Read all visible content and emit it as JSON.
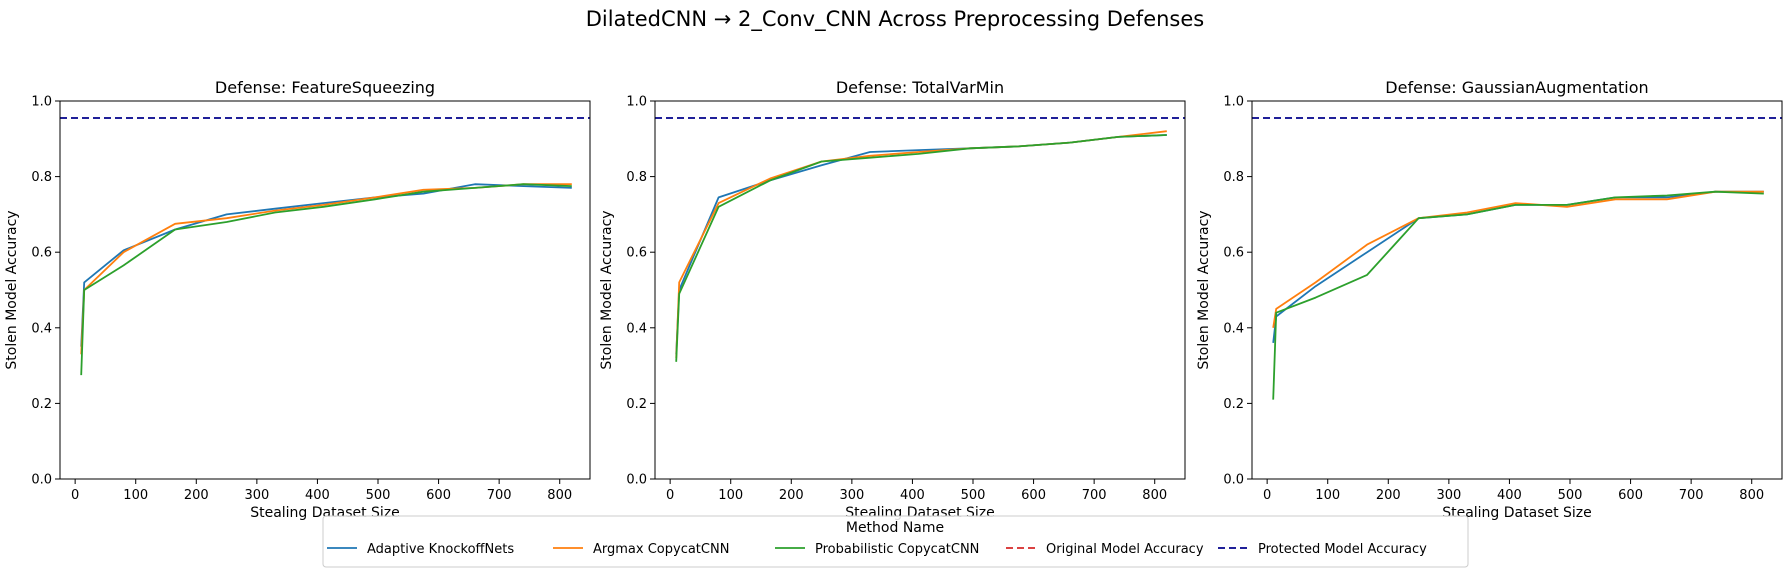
{
  "figure": {
    "suptitle": "DilatedCNN → 2_Conv_CNN Across Preprocessing Defenses"
  },
  "legend": {
    "title": "Method Name",
    "items": [
      {
        "label": "Adaptive KnockoffNets",
        "color": "#1f77b4",
        "dash": "solid"
      },
      {
        "label": "Argmax CopycatCNN",
        "color": "#ff7f0e",
        "dash": "solid"
      },
      {
        "label": "Probabilistic CopycatCNN",
        "color": "#2ca02c",
        "dash": "solid"
      },
      {
        "label": "Original Model Accuracy",
        "color": "#d62728",
        "dash": "dashed"
      },
      {
        "label": "Protected Model Accuracy",
        "color": "#00008b",
        "dash": "dashed"
      }
    ]
  },
  "chart_data": [
    {
      "type": "line",
      "title": "Defense: FeatureSqueezing",
      "xlabel": "Stealing Dataset Size",
      "ylabel": "Stolen Model Accuracy",
      "xlim": [
        -25,
        850
      ],
      "ylim": [
        0.0,
        1.0
      ],
      "xticks": [
        0,
        100,
        200,
        300,
        400,
        500,
        600,
        700,
        800
      ],
      "yticks": [
        0.0,
        0.2,
        0.4,
        0.6,
        0.8,
        1.0
      ],
      "grid": false,
      "protected_accuracy": 0.955,
      "series": [
        {
          "name": "Adaptive KnockoffNets",
          "x": [
            10,
            15,
            80,
            165,
            250,
            330,
            410,
            495,
            575,
            660,
            740,
            820
          ],
          "y": [
            0.35,
            0.52,
            0.605,
            0.66,
            0.7,
            0.715,
            0.73,
            0.745,
            0.755,
            0.78,
            0.775,
            0.77
          ]
        },
        {
          "name": "Argmax CopycatCNN",
          "x": [
            10,
            15,
            80,
            165,
            250,
            330,
            410,
            495,
            575,
            660,
            740,
            820
          ],
          "y": [
            0.33,
            0.5,
            0.6,
            0.675,
            0.69,
            0.71,
            0.725,
            0.745,
            0.765,
            0.77,
            0.78,
            0.78
          ]
        },
        {
          "name": "Probabilistic CopycatCNN",
          "x": [
            10,
            15,
            80,
            165,
            250,
            330,
            410,
            495,
            575,
            660,
            740,
            820
          ],
          "y": [
            0.275,
            0.5,
            0.565,
            0.66,
            0.68,
            0.705,
            0.72,
            0.74,
            0.76,
            0.77,
            0.78,
            0.775
          ]
        }
      ]
    },
    {
      "type": "line",
      "title": "Defense: TotalVarMin",
      "xlabel": "Stealing Dataset Size",
      "ylabel": "Stolen Model Accuracy",
      "xlim": [
        -25,
        850
      ],
      "ylim": [
        0.0,
        1.0
      ],
      "xticks": [
        0,
        100,
        200,
        300,
        400,
        500,
        600,
        700,
        800
      ],
      "yticks": [
        0.0,
        0.2,
        0.4,
        0.6,
        0.8,
        1.0
      ],
      "grid": false,
      "protected_accuracy": 0.955,
      "series": [
        {
          "name": "Adaptive KnockoffNets",
          "x": [
            10,
            15,
            80,
            165,
            250,
            330,
            410,
            495,
            575,
            660,
            740,
            820
          ],
          "y": [
            0.33,
            0.5,
            0.745,
            0.79,
            0.83,
            0.865,
            0.87,
            0.875,
            0.88,
            0.89,
            0.905,
            0.91
          ]
        },
        {
          "name": "Argmax CopycatCNN",
          "x": [
            10,
            15,
            80,
            165,
            250,
            330,
            410,
            495,
            575,
            660,
            740,
            820
          ],
          "y": [
            0.32,
            0.52,
            0.73,
            0.795,
            0.84,
            0.855,
            0.865,
            0.875,
            0.88,
            0.89,
            0.905,
            0.92
          ]
        },
        {
          "name": "Probabilistic CopycatCNN",
          "x": [
            10,
            15,
            80,
            165,
            250,
            330,
            410,
            495,
            575,
            660,
            740,
            820
          ],
          "y": [
            0.31,
            0.49,
            0.72,
            0.79,
            0.84,
            0.85,
            0.86,
            0.875,
            0.88,
            0.89,
            0.905,
            0.91
          ]
        }
      ]
    },
    {
      "type": "line",
      "title": "Defense: GaussianAugmentation",
      "xlabel": "Stealing Dataset Size",
      "ylabel": "Stolen Model Accuracy",
      "xlim": [
        -25,
        850
      ],
      "ylim": [
        0.0,
        1.0
      ],
      "xticks": [
        0,
        100,
        200,
        300,
        400,
        500,
        600,
        700,
        800
      ],
      "yticks": [
        0.0,
        0.2,
        0.4,
        0.6,
        0.8,
        1.0
      ],
      "grid": false,
      "protected_accuracy": 0.955,
      "series": [
        {
          "name": "Adaptive KnockoffNets",
          "x": [
            10,
            15,
            80,
            165,
            250,
            330,
            410,
            495,
            575,
            660,
            740,
            820
          ],
          "y": [
            0.36,
            0.43,
            0.51,
            0.6,
            0.69,
            0.7,
            0.725,
            0.725,
            0.745,
            0.745,
            0.76,
            0.76
          ]
        },
        {
          "name": "Argmax CopycatCNN",
          "x": [
            10,
            15,
            80,
            165,
            250,
            330,
            410,
            495,
            575,
            660,
            740,
            820
          ],
          "y": [
            0.4,
            0.45,
            0.52,
            0.62,
            0.69,
            0.705,
            0.73,
            0.72,
            0.74,
            0.74,
            0.76,
            0.76
          ]
        },
        {
          "name": "Probabilistic CopycatCNN",
          "x": [
            10,
            15,
            80,
            165,
            250,
            330,
            410,
            495,
            575,
            660,
            740,
            820
          ],
          "y": [
            0.21,
            0.44,
            0.48,
            0.54,
            0.69,
            0.7,
            0.725,
            0.725,
            0.745,
            0.75,
            0.76,
            0.755
          ]
        }
      ]
    }
  ]
}
